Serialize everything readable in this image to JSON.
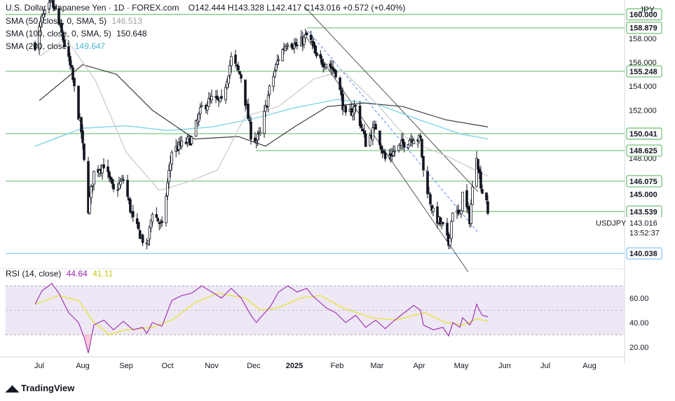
{
  "header": {
    "symbol_title": "U.S. Dollar / Japanese Yen · 1D · FOREX.com",
    "ohlc": "O142.444  H143.328  L142.417  C143.016  +0.572 (+0.40%)",
    "currency_button": "JPY"
  },
  "legend": {
    "sma50_label": "SMA (50, close, 0, SMA, 5)",
    "sma50_value": "146.513",
    "sma100_label": "SMA (100, close, 0, SMA, 5)",
    "sma100_value": "150.648",
    "sma200_label": "SMA (200, close)",
    "sma200_value": "149.647",
    "rsi_label": "RSI (14, close)",
    "rsi_value": "44.64",
    "rsi_ma_value": "41.11"
  },
  "brand": "TradingView",
  "colors": {
    "up_candle": "#131722",
    "down_candle": "#131722",
    "sma50": "#c8c8c8",
    "sma100": "#3a3a3a",
    "sma200": "#7fd3e8",
    "level_line": "#81c784",
    "support_line": "#90caf9",
    "channel": "#555555",
    "rsi_line": "#9c27b0",
    "rsi_ma": "#e6e62e",
    "rsi_band": "#ede7f6"
  },
  "chart_data": {
    "type": "candlestick",
    "x_ticks": [
      "Jul",
      "Aug",
      "Sep",
      "Oct",
      "Nov",
      "Dec",
      "2025",
      "Feb",
      "Mar",
      "Apr",
      "May",
      "Jun",
      "Jul",
      "Aug"
    ],
    "y_ticks": [
      "158.000",
      "156.000",
      "154.000",
      "152.000",
      "150.000",
      "148.000",
      "146.000"
    ],
    "ylim": [
      139.0,
      161.2
    ],
    "level_labels": [
      "160.000",
      "158.879",
      "155.248",
      "150.041",
      "148.625",
      "146.075",
      "145.000",
      "143.539",
      "143.016",
      "140.038"
    ],
    "levels": [
      160.0,
      158.879,
      155.248,
      150.041,
      148.625,
      146.075,
      143.539,
      140.038
    ],
    "last_price": 143.016,
    "last_price_label": "143.016",
    "last_price_symbol": "USDJPY",
    "countdown": "13:52:37",
    "close_path": [
      [
        "Jun 28",
        157.5
      ],
      [
        "Jul 3",
        159.6
      ],
      [
        "Jul 10",
        161.0
      ],
      [
        "Jul 17",
        158.4
      ],
      [
        "Jul 24",
        155.2
      ],
      [
        "Jul 31",
        150.2
      ],
      [
        "Aug 5",
        143.8
      ],
      [
        "Aug 9",
        146.8
      ],
      [
        "Aug 16",
        147.5
      ],
      [
        "Aug 23",
        145.2
      ],
      [
        "Aug 30",
        146.2
      ],
      [
        "Sep 6",
        142.8
      ],
      [
        "Sep 13",
        141.2
      ],
      [
        "Sep 16",
        140.4
      ],
      [
        "Sep 20",
        143.6
      ],
      [
        "Sep 27",
        142.2
      ],
      [
        "Oct 4",
        148.6
      ],
      [
        "Oct 11",
        149.1
      ],
      [
        "Oct 18",
        149.6
      ],
      [
        "Oct 25",
        152.2
      ],
      [
        "Nov 1",
        152.9
      ],
      [
        "Nov 8",
        152.6
      ],
      [
        "Nov 15",
        156.3
      ],
      [
        "Nov 22",
        154.8
      ],
      [
        "Nov 29",
        150.0
      ],
      [
        "Dec 3",
        149.5
      ],
      [
        "Dec 6",
        150.0
      ],
      [
        "Dec 13",
        153.7
      ],
      [
        "Dec 20",
        156.4
      ],
      [
        "Dec 27",
        157.8
      ],
      [
        "Jan 3",
        157.3
      ],
      [
        "Jan 10",
        158.2
      ],
      [
        "Jan 14",
        157.5
      ],
      [
        "Jan 17",
        156.2
      ],
      [
        "Jan 24",
        156.0
      ],
      [
        "Jan 31",
        155.2
      ],
      [
        "Feb 7",
        151.4
      ],
      [
        "Feb 14",
        152.3
      ],
      [
        "Feb 21",
        149.3
      ],
      [
        "Feb 28",
        150.6
      ],
      [
        "Mar 7",
        147.9
      ],
      [
        "Mar 14",
        148.6
      ],
      [
        "Mar 21",
        149.3
      ],
      [
        "Mar 28",
        149.8
      ],
      [
        "Apr 2",
        149.5
      ],
      [
        "Apr 4",
        146.9
      ],
      [
        "Apr 11",
        143.4
      ],
      [
        "Apr 18",
        142.2
      ],
      [
        "Apr 22",
        140.8
      ],
      [
        "Apr 25",
        143.7
      ],
      [
        "Apr 30",
        143.1
      ],
      [
        "May 2",
        145.0
      ],
      [
        "May 7",
        142.9
      ],
      [
        "May 9",
        145.4
      ],
      [
        "May 12",
        148.4
      ],
      [
        "May 14",
        146.6
      ],
      [
        "May 16",
        145.2
      ],
      [
        "May 19",
        144.7
      ],
      [
        "May 20",
        143.0
      ]
    ],
    "sma50": [
      [
        "Jul 1",
        156.5
      ],
      [
        "Jul 20",
        158.0
      ],
      [
        "Aug 10",
        154.5
      ],
      [
        "Sep 1",
        148.5
      ],
      [
        "Sep 25",
        145.3
      ],
      [
        "Oct 15",
        146.0
      ],
      [
        "Nov 5",
        147.0
      ],
      [
        "Nov 25",
        151.5
      ],
      [
        "Dec 20",
        152.3
      ],
      [
        "Jan 15",
        154.6
      ],
      [
        "Feb 5",
        155.3
      ],
      [
        "Mar 1",
        152.5
      ],
      [
        "Mar 25",
        149.4
      ],
      [
        "Apr 20",
        148.2
      ],
      [
        "May 20",
        146.5
      ]
    ],
    "sma100": [
      [
        "Jul 1",
        152.8
      ],
      [
        "Aug 1",
        155.8
      ],
      [
        "Aug 25",
        155.0
      ],
      [
        "Sep 20",
        152.0
      ],
      [
        "Oct 20",
        149.6
      ],
      [
        "Nov 20",
        149.8
      ],
      [
        "Dec 10",
        149.0
      ],
      [
        "Jan 1",
        150.6
      ],
      [
        "Jan 25",
        152.3
      ],
      [
        "Feb 20",
        152.6
      ],
      [
        "Mar 20",
        152.3
      ],
      [
        "Apr 20",
        151.2
      ],
      [
        "May 20",
        150.6
      ]
    ],
    "sma200": [
      [
        "Jun 28",
        149.0
      ],
      [
        "Aug 1",
        150.5
      ],
      [
        "Sep 1",
        150.7
      ],
      [
        "Oct 1",
        150.3
      ],
      [
        "Nov 1",
        150.6
      ],
      [
        "Dec 1",
        151.3
      ],
      [
        "Jan 1",
        152.2
      ],
      [
        "Feb 1",
        152.9
      ],
      [
        "Mar 1",
        152.5
      ],
      [
        "Apr 1",
        151.2
      ],
      [
        "May 1",
        150.0
      ],
      [
        "May 20",
        149.6
      ]
    ],
    "rsi": {
      "ylim": [
        13,
        80
      ],
      "y_ticks": [
        "60.00",
        "40.00",
        "20.00"
      ],
      "band": [
        30,
        70
      ],
      "mid": 50,
      "series": [
        [
          "Jun 28",
          55
        ],
        [
          "Jul 3",
          66
        ],
        [
          "Jul 10",
          72
        ],
        [
          "Jul 15",
          64
        ],
        [
          "Jul 22",
          48
        ],
        [
          "Jul 29",
          40
        ],
        [
          "Aug 2",
          28
        ],
        [
          "Aug 5",
          15
        ],
        [
          "Aug 9",
          38
        ],
        [
          "Aug 16",
          42
        ],
        [
          "Aug 23",
          34
        ],
        [
          "Aug 30",
          41
        ],
        [
          "Sep 6",
          34
        ],
        [
          "Sep 13",
          36
        ],
        [
          "Sep 16",
          31
        ],
        [
          "Sep 20",
          40
        ],
        [
          "Sep 27",
          37
        ],
        [
          "Oct 4",
          58
        ],
        [
          "Oct 11",
          62
        ],
        [
          "Oct 18",
          64
        ],
        [
          "Oct 25",
          70
        ],
        [
          "Nov 1",
          65
        ],
        [
          "Nov 8",
          60
        ],
        [
          "Nov 15",
          68
        ],
        [
          "Nov 22",
          60
        ],
        [
          "Nov 29",
          46
        ],
        [
          "Dec 3",
          40
        ],
        [
          "Dec 6",
          44
        ],
        [
          "Dec 13",
          52
        ],
        [
          "Dec 20",
          65
        ],
        [
          "Dec 27",
          70
        ],
        [
          "Jan 3",
          65
        ],
        [
          "Jan 10",
          68
        ],
        [
          "Jan 14",
          62
        ],
        [
          "Jan 20",
          56
        ],
        [
          "Jan 24",
          52
        ],
        [
          "Jan 31",
          48
        ],
        [
          "Feb 7",
          40
        ],
        [
          "Feb 14",
          46
        ],
        [
          "Feb 21",
          36
        ],
        [
          "Feb 28",
          42
        ],
        [
          "Mar 7",
          35
        ],
        [
          "Mar 14",
          42
        ],
        [
          "Mar 21",
          48
        ],
        [
          "Mar 28",
          54
        ],
        [
          "Apr 2",
          50
        ],
        [
          "Apr 4",
          38
        ],
        [
          "Apr 11",
          34
        ],
        [
          "Apr 18",
          36
        ],
        [
          "Apr 22",
          29
        ],
        [
          "Apr 25",
          40
        ],
        [
          "Apr 30",
          36
        ],
        [
          "May 2",
          44
        ],
        [
          "May 7",
          38
        ],
        [
          "May 9",
          42
        ],
        [
          "May 12",
          55
        ],
        [
          "May 14",
          50
        ],
        [
          "May 16",
          46
        ],
        [
          "May 20",
          44.6
        ]
      ],
      "ma": [
        [
          "Jun 28",
          55
        ],
        [
          "Jul 15",
          62
        ],
        [
          "Jul 29",
          58
        ],
        [
          "Aug 9",
          40
        ],
        [
          "Aug 20",
          30
        ],
        [
          "Sep 1",
          34
        ],
        [
          "Sep 20",
          36
        ],
        [
          "Oct 4",
          42
        ],
        [
          "Oct 20",
          56
        ],
        [
          "Nov 5",
          64
        ],
        [
          "Nov 25",
          60
        ],
        [
          "Dec 6",
          50
        ],
        [
          "Dec 20",
          52
        ],
        [
          "Jan 5",
          60
        ],
        [
          "Jan 20",
          62
        ],
        [
          "Feb 5",
          52
        ],
        [
          "Feb 25",
          44
        ],
        [
          "Mar 15",
          42
        ],
        [
          "Mar 28",
          46
        ],
        [
          "Apr 5",
          48
        ],
        [
          "Apr 20",
          40
        ],
        [
          "May 2",
          38
        ],
        [
          "May 12",
          43
        ],
        [
          "May 20",
          41.1
        ]
      ]
    }
  }
}
